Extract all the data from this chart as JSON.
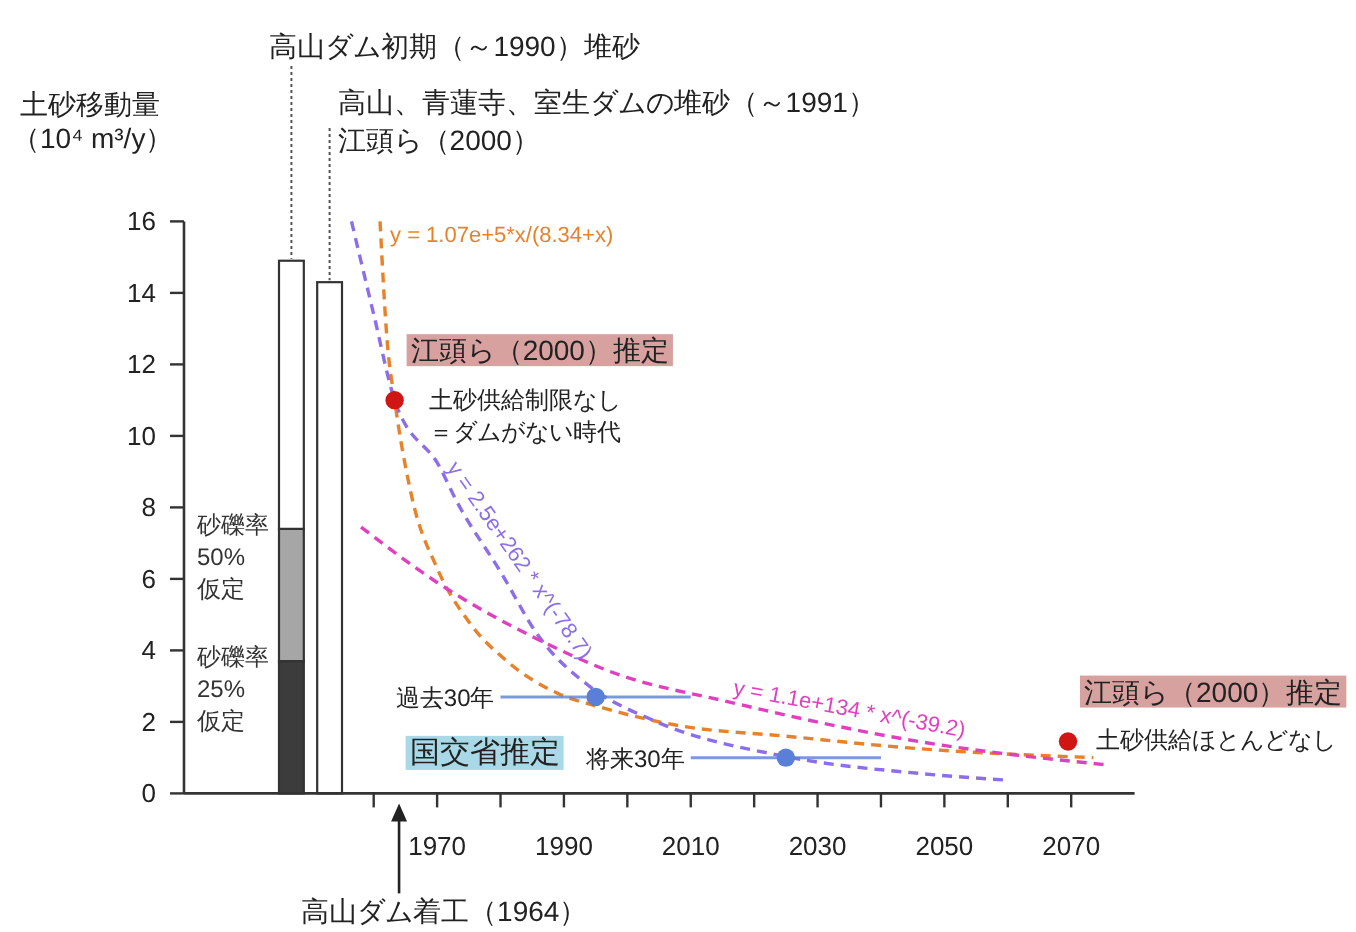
{
  "chart_data": [
    {
      "type": "bar",
      "categories": [
        null,
        null
      ],
      "stacked": true,
      "ylabel": "土砂移動量（10⁴ m³/y）",
      "ylim": [
        0,
        16
      ],
      "yticks": [
        0,
        2,
        4,
        6,
        8,
        10,
        12,
        14,
        16
      ],
      "series": [
        {
          "name": "砂礫率\n25%\n仮定",
          "color": "#3c3c3c",
          "values": [
            3.7,
            null
          ]
        },
        {
          "name": "砂礫率\n50%\n仮定",
          "color": "#a6a6a6",
          "values": [
            3.7,
            null
          ]
        },
        {
          "color": "#ffffff",
          "values": [
            7.5,
            14.3
          ]
        }
      ],
      "annotations": [
        "高山ダム初期（～1990）堆砂",
        "高山、青蓮寺、室生ダムの堆砂（～1991）",
        "江頭ら（2000）"
      ]
    },
    {
      "type": "line",
      "xlim": [
        1955,
        2080
      ],
      "xticks": [
        {
          "value": 1960,
          "label": null
        },
        1970,
        {
          "value": 1980,
          "label": null
        },
        1990,
        {
          "value": 2000,
          "label": null
        },
        2010,
        {
          "value": 2020,
          "label": null
        },
        2030,
        {
          "value": 2040,
          "label": null
        },
        2050,
        {
          "value": 2060,
          "label": null
        },
        2070
      ],
      "ylim": [
        0,
        16
      ],
      "tick_labels": "x",
      "line_style": "dashed",
      "series": [
        {
          "name": "y = 1.07e+5*x/(8.34+x)",
          "color": "#e8822a",
          "x": [
            1961,
            1962.1,
            1963.3,
            1966,
            1970,
            1975,
            1981,
            1989,
            1996,
            2008,
            2025,
            2046,
            2073.5
          ],
          "values": [
            16,
            12.7,
            11,
            8.3,
            6.3,
            4.8,
            3.7,
            2.8,
            2.4,
            1.9,
            1.6,
            1.25,
            1.0
          ]
        },
        {
          "name": "y = 2.5e+262 * x^(-78.7)",
          "color": "#8b6ee8",
          "x": [
            1956.5,
            1960,
            1963.3,
            1970.5,
            1973,
            1980,
            1986,
            1994,
            2004,
            2025,
            2046,
            2060
          ],
          "values": [
            16,
            13.4,
            11,
            9.1,
            8.2,
            6.2,
            4.4,
            3.0,
            2.05,
            1.03,
            0.56,
            0.37
          ]
        },
        {
          "name": "y = 1.1e+134 * x^(-39.2)",
          "color": "#e040c0",
          "x": [
            1958,
            1970,
            1986,
            1999,
            2015,
            2046,
            2075.5
          ],
          "values": [
            7.45,
            5.9,
            4.3,
            3.3,
            2.6,
            1.45,
            0.8
          ]
        },
        {
          "type": "scatter",
          "color": "#5a7fd8",
          "marker": "circle",
          "x": [
            1995,
            2025
          ],
          "values": [
            2.7,
            1.0
          ],
          "xerrors": [
            [
              1980,
              2010
            ],
            [
              2010,
              2040
            ]
          ]
        },
        {
          "type": "scatter",
          "color": "#d01515",
          "marker": "circle",
          "x": [
            1963.3,
            2069.5
          ],
          "values": [
            11.0,
            1.45
          ]
        }
      ],
      "ref_lines": [
        {
          "axis": "x",
          "value": 1964,
          "label": "高山ダム着工（1964）"
        }
      ],
      "annotations": [
        {
          "text": "江頭ら（2000）推定",
          "x": 1963.3,
          "y": 11.0
        },
        {
          "text": "土砂供給制限なし",
          "x": 1963.3,
          "y": 11.0
        },
        {
          "text": "＝ダムがない時代",
          "x": 1963.3,
          "y": 11.0
        },
        {
          "text": "江頭ら（2000）推定",
          "x": 2069.5,
          "y": 1.45
        },
        {
          "text": "土砂供給ほとんどなし",
          "x": 2069.5,
          "y": 1.45
        },
        {
          "text": "国交省推定",
          "x": 1995,
          "y": 2.7
        },
        {
          "text": "過去30年",
          "x": 1980,
          "y": 2.7
        },
        {
          "text": "将来30年",
          "x": 2010,
          "y": 1.0
        }
      ]
    }
  ]
}
